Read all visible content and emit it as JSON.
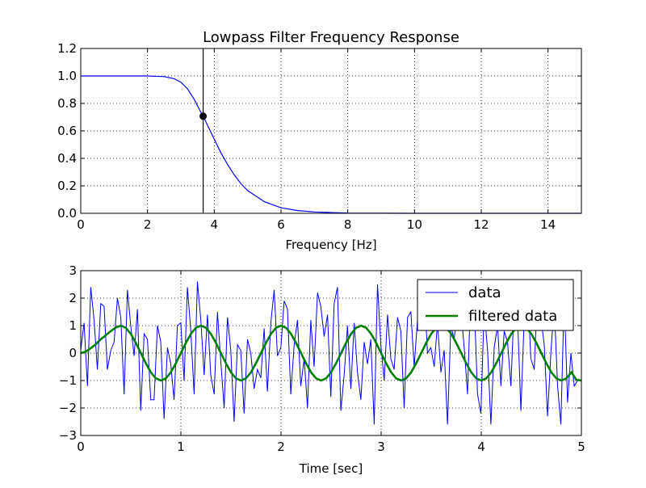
{
  "chart_data": [
    {
      "type": "line",
      "title": "Lowpass Filter Frequency Response",
      "xlabel": "Frequency [Hz]",
      "ylabel": "",
      "xlim": [
        0,
        15
      ],
      "ylim": [
        0,
        1.2
      ],
      "grid": true,
      "x_tick_labels": [
        "0",
        "2",
        "4",
        "6",
        "8",
        "10",
        "12",
        "14"
      ],
      "x_tick_values": [
        0,
        2,
        4,
        6,
        8,
        10,
        12,
        14
      ],
      "y_tick_labels": [
        "0.0",
        "0.2",
        "0.4",
        "0.6",
        "0.8",
        "1.0",
        "1.2"
      ],
      "y_tick_values": [
        0,
        0.2,
        0.4,
        0.6,
        0.8,
        1.0,
        1.2
      ],
      "series": [
        {
          "color": "#0000ff",
          "x": [
            0,
            1,
            2,
            2.5,
            2.8,
            3.0,
            3.2,
            3.4,
            3.6,
            3.667,
            3.8,
            4.0,
            4.2,
            4.4,
            4.6,
            4.8,
            5.0,
            5.5,
            6.0,
            6.5,
            7.0,
            7.5,
            8.0,
            9.0,
            10.0,
            12.0,
            15.0
          ],
          "values": [
            1.0,
            1.0,
            1.0,
            0.995,
            0.98,
            0.955,
            0.905,
            0.83,
            0.735,
            0.707,
            0.64,
            0.54,
            0.44,
            0.355,
            0.28,
            0.215,
            0.165,
            0.085,
            0.04,
            0.02,
            0.01,
            0.005,
            0.002,
            0.0005,
            0.0001,
            0.0,
            0.0
          ]
        }
      ],
      "cutoff_line": {
        "x": 3.667,
        "color": "#000000"
      },
      "marker_point": {
        "x": 3.667,
        "y": 0.707,
        "color": "#000000"
      }
    },
    {
      "type": "line",
      "title": "",
      "xlabel": "Time [sec]",
      "ylabel": "",
      "xlim": [
        0,
        5
      ],
      "ylim": [
        -3,
        3
      ],
      "grid": true,
      "x_tick_labels": [
        "0",
        "1",
        "2",
        "3",
        "4",
        "5"
      ],
      "x_tick_values": [
        0,
        1,
        2,
        3,
        4,
        5
      ],
      "y_tick_labels": [
        "−3",
        "−2",
        "−1",
        "0",
        "1",
        "2",
        "3"
      ],
      "y_tick_values": [
        -3,
        -2,
        -1,
        0,
        1,
        2,
        3
      ],
      "legend_placement": "upper right",
      "series": [
        {
          "name": "data",
          "color": "#0000ff",
          "x_start": 0,
          "x_step": 0.0333,
          "values": [
            0.1,
            1.1,
            -1.2,
            2.4,
            1.2,
            -0.6,
            1.8,
            1.7,
            -0.6,
            0.1,
            0.4,
            2.0,
            1.3,
            -1.5,
            2.3,
            1.0,
            -0.1,
            1.6,
            -2.1,
            0.7,
            0.5,
            -1.7,
            -1.7,
            1.0,
            0.4,
            -2.4,
            0.2,
            -0.4,
            -1.7,
            1.0,
            1.1,
            -1.0,
            2.4,
            0.8,
            -1.5,
            2.6,
            1.2,
            -0.8,
            1.4,
            -0.8,
            -1.5,
            1.5,
            -0.3,
            -2.0,
            1.3,
            0.1,
            -2.5,
            0.3,
            0.1,
            -2.2,
            0.5,
            0.0,
            -1.3,
            -0.6,
            -0.9,
            0.9,
            -1.4,
            1.1,
            2.3,
            -0.1,
            0.2,
            1.9,
            1.6,
            -1.5,
            0.3,
            1.2,
            -1.2,
            -0.2,
            -2.0,
            1.2,
            -0.5,
            2.2,
            1.7,
            0.6,
            1.4,
            -1.6,
            1.8,
            2.4,
            -2.1,
            -0.8,
            1.0,
            -1.3,
            1.1,
            -0.7,
            -1.7,
            0.4,
            -0.4,
            0.5,
            -2.6,
            2.5,
            0.3,
            -1.0,
            1.4,
            -0.2,
            -0.6,
            1.3,
            0.8,
            -2.0,
            1.3,
            1.5,
            -0.5,
            1.2,
            1.0,
            2.4,
            0.0,
            0.2,
            -0.5,
            1.1,
            -0.7,
            0.1,
            -2.6,
            1.0,
            0.5,
            1.8,
            1.6,
            0.2,
            -1.5,
            2.5,
            1.9,
            -1.5,
            -2.2,
            1.6,
            0.1,
            -2.6,
            0.2,
            1.0,
            -1.2,
            0.8,
            0.4,
            -1.2,
            1.8,
            1.3,
            -2.1,
            1.3,
            2.4,
            -0.2,
            -0.6,
            2.3,
            1.3,
            0.3,
            -2.3,
            0.0,
            1.8,
            -1.2,
            -2.6,
            2.1,
            -1.8,
            0.0,
            -1.2,
            -1.0
          ]
        },
        {
          "name": "filtered data",
          "color": "#008000",
          "x": [
            0,
            0.05,
            0.1,
            0.15,
            0.2,
            0.25,
            0.3,
            0.35,
            0.4,
            0.45,
            0.5,
            0.55,
            0.6,
            0.65,
            0.7,
            0.75,
            0.8,
            0.85,
            0.9,
            0.95,
            1.0,
            1.05,
            1.1,
            1.15,
            1.2,
            1.25,
            1.3,
            1.35,
            1.4,
            1.45,
            1.5,
            1.55,
            1.6,
            1.65,
            1.7,
            1.75,
            1.8,
            1.85,
            1.9,
            1.95,
            2.0,
            2.05,
            2.1,
            2.15,
            2.2,
            2.25,
            2.3,
            2.35,
            2.4,
            2.45,
            2.5,
            2.55,
            2.6,
            2.65,
            2.7,
            2.75,
            2.8,
            2.85,
            2.9,
            2.95,
            3.0,
            3.05,
            3.1,
            3.15,
            3.2,
            3.25,
            3.3,
            3.35,
            3.4,
            3.45,
            3.5,
            3.55,
            3.6,
            3.65,
            3.7,
            3.75,
            3.8,
            3.85,
            3.9,
            3.95,
            4.0,
            4.05,
            4.1,
            4.15,
            4.2,
            4.25,
            4.3,
            4.35,
            4.4,
            4.45,
            4.5,
            4.55,
            4.6,
            4.65,
            4.7,
            4.75,
            4.8,
            4.85,
            4.9,
            4.95,
            5.0
          ],
          "values": [
            0.0,
            0.05,
            0.18,
            0.32,
            0.5,
            0.65,
            0.8,
            0.93,
            1.0,
            0.92,
            0.7,
            0.37,
            0.0,
            -0.37,
            -0.7,
            -0.92,
            -1.0,
            -0.92,
            -0.7,
            -0.37,
            0.0,
            0.37,
            0.7,
            0.92,
            1.0,
            0.92,
            0.7,
            0.37,
            0.0,
            -0.37,
            -0.7,
            -0.92,
            -1.0,
            -0.92,
            -0.7,
            -0.37,
            0.0,
            0.37,
            0.7,
            0.92,
            1.0,
            0.92,
            0.7,
            0.37,
            0.0,
            -0.37,
            -0.7,
            -0.92,
            -1.0,
            -0.92,
            -0.7,
            -0.37,
            0.0,
            0.37,
            0.7,
            0.92,
            1.0,
            0.92,
            0.7,
            0.37,
            0.0,
            -0.37,
            -0.7,
            -0.92,
            -1.0,
            -0.92,
            -0.7,
            -0.37,
            0.0,
            0.37,
            0.7,
            0.92,
            1.0,
            0.92,
            0.7,
            0.37,
            0.0,
            -0.37,
            -0.7,
            -0.92,
            -1.0,
            -0.92,
            -0.7,
            -0.37,
            0.0,
            0.37,
            0.7,
            0.92,
            1.0,
            0.92,
            0.7,
            0.37,
            0.0,
            -0.37,
            -0.7,
            -0.92,
            -1.0,
            -0.92,
            -0.7,
            -0.97,
            -1.0
          ]
        }
      ]
    }
  ]
}
